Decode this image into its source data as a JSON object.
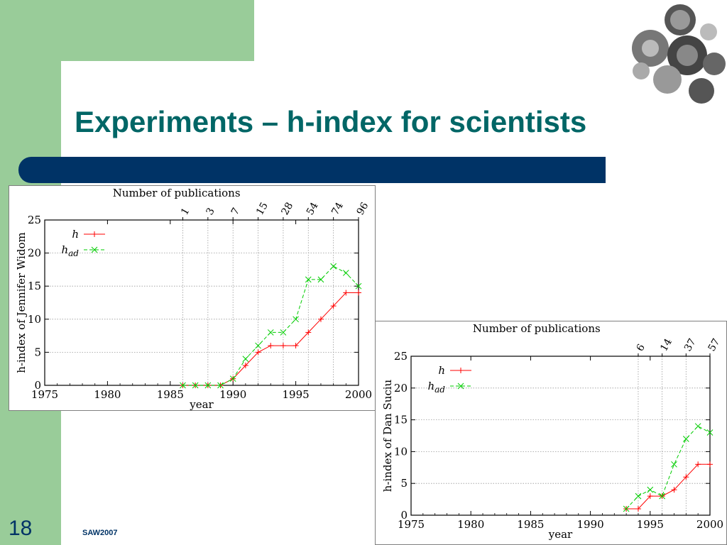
{
  "slide": {
    "title": "Experiments – h-index for scientists",
    "slide_number": "18",
    "footer": "SAW2007"
  },
  "chart_data": [
    {
      "type": "line",
      "xlabel": "year",
      "ylabel": "h-index of Jennifer Widom",
      "top_axis_label": "Number of publications",
      "xlim": [
        1975,
        2000
      ],
      "ylim": [
        0,
        25
      ],
      "xticks": [
        1975,
        1980,
        1985,
        1990,
        1995,
        2000
      ],
      "yticks": [
        0,
        5,
        10,
        15,
        20,
        25
      ],
      "top_ticks": [
        {
          "x": 1986,
          "label": "1"
        },
        {
          "x": 1988,
          "label": "3"
        },
        {
          "x": 1990,
          "label": "7"
        },
        {
          "x": 1992,
          "label": "15"
        },
        {
          "x": 1994,
          "label": "28"
        },
        {
          "x": 1996,
          "label": "54"
        },
        {
          "x": 1998,
          "label": "74"
        },
        {
          "x": 2000,
          "label": "96"
        }
      ],
      "grid": "horizontal",
      "legend": "top-left",
      "series": [
        {
          "name": "h",
          "sub": "",
          "color": "#ff0000",
          "marker": "plus",
          "dash": false,
          "x": [
            1986,
            1987,
            1988,
            1989,
            1990,
            1991,
            1992,
            1993,
            1994,
            1995,
            1996,
            1997,
            1998,
            1999,
            2000
          ],
          "y": [
            0,
            0,
            0,
            0,
            1,
            3,
            5,
            6,
            6,
            6,
            8,
            10,
            12,
            14,
            14
          ]
        },
        {
          "name": "h",
          "sub": "ad",
          "color": "#00cc00",
          "marker": "cross",
          "dash": true,
          "x": [
            1986,
            1987,
            1988,
            1989,
            1990,
            1991,
            1992,
            1993,
            1994,
            1995,
            1996,
            1997,
            1998,
            1999,
            2000
          ],
          "y": [
            0,
            0,
            0,
            0,
            1,
            4,
            6,
            8,
            8,
            10,
            16,
            16,
            18,
            17,
            15
          ]
        }
      ]
    },
    {
      "type": "line",
      "xlabel": "year",
      "ylabel": "h-index of Dan Suciu",
      "top_axis_label": "Number of publications",
      "xlim": [
        1975,
        2000
      ],
      "ylim": [
        0,
        25
      ],
      "xticks": [
        1975,
        1980,
        1985,
        1990,
        1995,
        2000
      ],
      "yticks": [
        0,
        5,
        10,
        15,
        20,
        25
      ],
      "top_ticks": [
        {
          "x": 1994,
          "label": "6"
        },
        {
          "x": 1996,
          "label": "14"
        },
        {
          "x": 1998,
          "label": "37"
        },
        {
          "x": 2000,
          "label": "57"
        }
      ],
      "grid": "horizontal",
      "legend": "top-left",
      "series": [
        {
          "name": "h",
          "sub": "",
          "color": "#ff0000",
          "marker": "plus",
          "dash": false,
          "x": [
            1993,
            1994,
            1995,
            1996,
            1997,
            1998,
            1999,
            2000
          ],
          "y": [
            1,
            1,
            3,
            3,
            4,
            6,
            8,
            8
          ]
        },
        {
          "name": "h",
          "sub": "ad",
          "color": "#00cc00",
          "marker": "cross",
          "dash": true,
          "x": [
            1993,
            1994,
            1995,
            1996,
            1997,
            1998,
            1999,
            2000
          ],
          "y": [
            1,
            3,
            4,
            3,
            8,
            12,
            14,
            13
          ]
        }
      ]
    }
  ]
}
